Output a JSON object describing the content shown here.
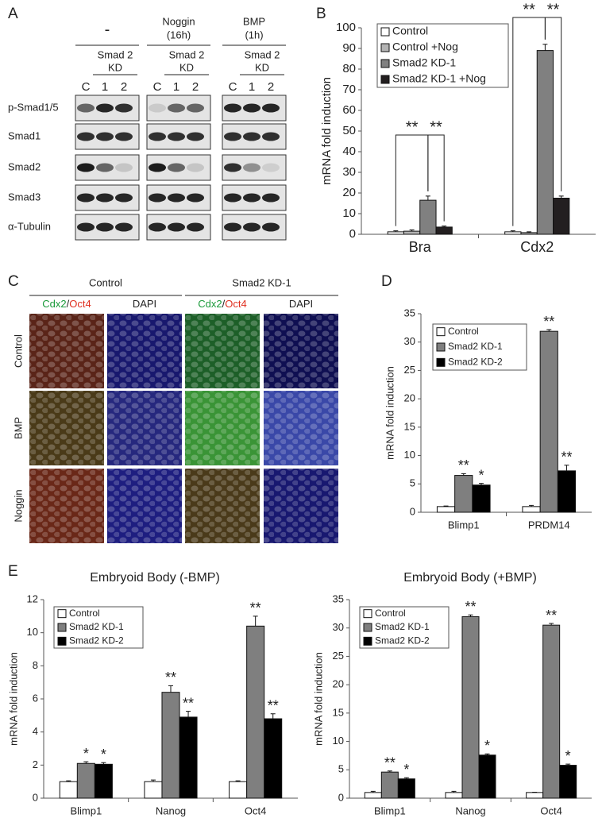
{
  "panel_labels": [
    "A",
    "B",
    "C",
    "D",
    "E"
  ],
  "blot": {
    "groups": [
      {
        "treatment": [
          "-"
        ],
        "knockdown": [
          "Smad 2",
          "KD"
        ],
        "lanes": [
          "C",
          "1",
          "2"
        ]
      },
      {
        "treatment": [
          "Noggin",
          "(16h)"
        ],
        "knockdown": [
          "Smad 2",
          "KD"
        ],
        "lanes": [
          "C",
          "1",
          "2"
        ]
      },
      {
        "treatment": [
          "BMP",
          "(1h)"
        ],
        "knockdown": [
          "Smad 2",
          "KD"
        ],
        "lanes": [
          "C",
          "1",
          "2"
        ]
      }
    ],
    "rows": [
      "p-Smad1/5",
      "Smad1",
      "Smad2",
      "Smad3",
      "α-Tubulin"
    ]
  },
  "imaging": {
    "groups": [
      {
        "title": "Control",
        "columns": [
          [
            "Cdx2",
            "/",
            "Oct4"
          ],
          [
            "DAPI"
          ]
        ]
      },
      {
        "title": "Smad2 KD-1",
        "columns": [
          [
            "Cdx2",
            "/",
            "Oct4"
          ],
          [
            "DAPI"
          ]
        ]
      }
    ],
    "rows": [
      "Control",
      "BMP",
      "Noggin"
    ]
  },
  "chart_data": [
    {
      "type": "bar",
      "ylabel": "mRNA fold induction",
      "categories": [
        "Bra",
        "Cdx2"
      ],
      "series": [
        {
          "name": "Control",
          "color": "#ffffff",
          "values": [
            1.2,
            1.2
          ],
          "errors": [
            0.5,
            0.5
          ]
        },
        {
          "name": "Control +Nog",
          "color": "#b3b3b3",
          "values": [
            1.5,
            0.8
          ],
          "errors": [
            0.6,
            0.4
          ]
        },
        {
          "name": "Smad2 KD-1",
          "color": "#808080",
          "values": [
            16.5,
            89
          ],
          "errors": [
            2,
            3
          ]
        },
        {
          "name": "Smad2 KD-1 +Nog",
          "color": "#231f20",
          "values": [
            3.5,
            17.5
          ],
          "errors": [
            0.5,
            1
          ]
        }
      ],
      "brackets": [
        "**",
        "**",
        "**",
        "**"
      ],
      "ylim": [
        0,
        100
      ],
      "yticks": [
        0,
        10,
        20,
        30,
        40,
        50,
        60,
        70,
        80,
        90,
        100
      ],
      "legend": "upper left",
      "grid": false
    },
    {
      "type": "bar",
      "ylabel": "mRNA fold induction",
      "categories": [
        "Blimp1",
        "PRDM14"
      ],
      "series": [
        {
          "name": "Control",
          "color": "#ffffff",
          "values": [
            1,
            1
          ],
          "errors": [
            0.1,
            0.2
          ]
        },
        {
          "name": "Smad2 KD-1",
          "color": "#7f7f7f",
          "values": [
            6.5,
            31.9
          ],
          "errors": [
            0.3,
            0.3
          ],
          "significance": [
            "**",
            "**"
          ]
        },
        {
          "name": "Smad2 KD-2",
          "color": "#000000",
          "values": [
            4.8,
            7.3
          ],
          "errors": [
            0.3,
            1
          ],
          "significance": [
            "*",
            "**"
          ]
        }
      ],
      "ylim": [
        0,
        35
      ],
      "yticks": [
        0,
        5,
        10,
        15,
        20,
        25,
        30,
        35
      ],
      "legend": "upper left",
      "grid": false
    },
    {
      "type": "bar",
      "title": "Embryoid Body (-BMP)",
      "ylabel": "mRNA fold induction",
      "categories": [
        "Blimp1",
        "Nanog",
        "Oct4"
      ],
      "series": [
        {
          "name": "Control",
          "color": "#ffffff",
          "values": [
            1,
            1,
            1
          ],
          "errors": [
            0.05,
            0.1,
            0.05
          ]
        },
        {
          "name": "Smad2 KD-1",
          "color": "#7f7f7f",
          "values": [
            2.1,
            6.4,
            10.4
          ],
          "errors": [
            0.1,
            0.4,
            0.6
          ],
          "significance": [
            "*",
            "**",
            "**"
          ]
        },
        {
          "name": "Smad2 KD-2",
          "color": "#000000",
          "values": [
            2.05,
            4.9,
            4.8
          ],
          "errors": [
            0.1,
            0.35,
            0.3
          ],
          "significance": [
            "*",
            "**",
            "**"
          ]
        }
      ],
      "ylim": [
        0,
        12
      ],
      "yticks": [
        0,
        2,
        4,
        6,
        8,
        10,
        12
      ],
      "legend": "upper left",
      "grid": false
    },
    {
      "type": "bar",
      "title": "Embryoid Body (+BMP)",
      "ylabel": "mRNA fold induction",
      "categories": [
        "Blimp1",
        "Nanog",
        "Oct4"
      ],
      "series": [
        {
          "name": "Control",
          "color": "#ffffff",
          "values": [
            1,
            1,
            1
          ],
          "errors": [
            0.2,
            0.2,
            0.05
          ]
        },
        {
          "name": "Smad2 KD-1",
          "color": "#7f7f7f",
          "values": [
            4.6,
            32,
            30.5
          ],
          "errors": [
            0.2,
            0.3,
            0.3
          ],
          "significance": [
            "**",
            "**",
            "**"
          ]
        },
        {
          "name": "Smad2 KD-2",
          "color": "#000000",
          "values": [
            3.4,
            7.6,
            5.8
          ],
          "errors": [
            0.2,
            0.2,
            0.2
          ],
          "significance": [
            "*",
            "*",
            "*"
          ]
        }
      ],
      "ylim": [
        0,
        35
      ],
      "yticks": [
        0,
        5,
        10,
        15,
        20,
        25,
        30,
        35
      ],
      "legend": "upper left",
      "grid": false
    }
  ]
}
